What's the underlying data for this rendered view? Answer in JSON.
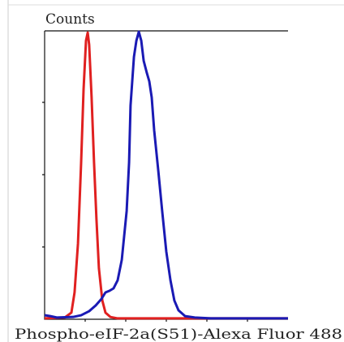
{
  "chart_data": {
    "type": "line",
    "ylabel": "Counts",
    "xlabel": "Phospho-eIF-2a(S51)-Alexa Fluor 488",
    "xlim": [
      0,
      100
    ],
    "ylim": [
      0,
      100
    ],
    "series": [
      {
        "color": "#e02020",
        "x": [
          0,
          8.3,
          11,
          12.3,
          13.7,
          15,
          16,
          17,
          17.7,
          18.3,
          19.3,
          20.3,
          21.3,
          22.3,
          23.7,
          25,
          27,
          30,
          100
        ],
        "values": [
          0.3,
          0.6,
          2.3,
          9.3,
          26.2,
          54.4,
          79.7,
          96.6,
          99.4,
          95.2,
          76.9,
          54.4,
          34.6,
          17.7,
          6.5,
          2.3,
          0.8,
          0.3,
          0.3
        ]
      },
      {
        "color": "#1a1ab4",
        "x": [
          0,
          2.3,
          5,
          11.7,
          15,
          18.3,
          21,
          23.3,
          25,
          26.7,
          28.3,
          30,
          31.7,
          33.7,
          34.7,
          35.3,
          36.7,
          37.7,
          38.7,
          39.7,
          40.7,
          42,
          43,
          44,
          45,
          46.7,
          48.3,
          50,
          51.7,
          53.3,
          55,
          57.7,
          61.7,
          68.3,
          100
        ],
        "values": [
          1.4,
          1.1,
          0.6,
          0.8,
          1.4,
          2.8,
          4.8,
          7.0,
          9.3,
          9.9,
          10.7,
          13.5,
          20.6,
          37.5,
          54.4,
          74.1,
          91.0,
          96.6,
          99.7,
          96.6,
          89.6,
          85.4,
          82.5,
          76.9,
          65.6,
          51.5,
          37.5,
          23.4,
          13.5,
          6.5,
          3.1,
          1.1,
          0.6,
          0.3,
          0.3
        ]
      }
    ]
  }
}
